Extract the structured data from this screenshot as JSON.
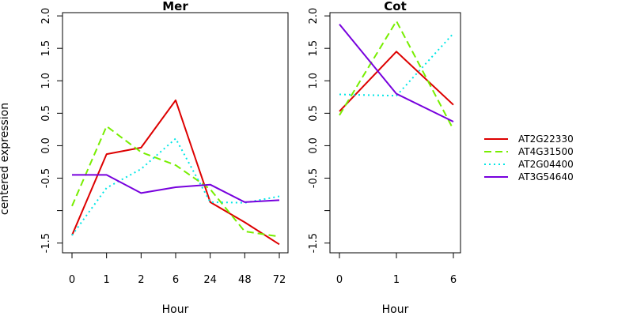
{
  "ylabel": "centered expression",
  "legend": {
    "position": "right",
    "entries": [
      {
        "name": "AT2G22330",
        "color": "#dd0000",
        "dash": "solid"
      },
      {
        "name": "AT4G31500",
        "color": "#77ee00",
        "dash": "dashed"
      },
      {
        "name": "AT2G04400",
        "color": "#00e6e6",
        "dash": "dotted"
      },
      {
        "name": "AT3G54640",
        "color": "#7700dd",
        "dash": "solid"
      }
    ]
  },
  "chart_data": [
    {
      "type": "line",
      "title": "Mer",
      "xlabel": "Hour",
      "ylabel": "centered expression",
      "categories": [
        "0",
        "1",
        "2",
        "6",
        "24",
        "48",
        "72"
      ],
      "ylim": [
        -1.65,
        2.05
      ],
      "yticks": [
        {
          "value": 2.0,
          "label": "2.0"
        },
        {
          "value": 1.5,
          "label": "1.5"
        },
        {
          "value": 1.0,
          "label": "1.0"
        },
        {
          "value": 0.5,
          "label": "0.5"
        },
        {
          "value": 0.0,
          "label": "0.0"
        },
        {
          "value": -0.5,
          "label": "-0.5"
        },
        {
          "value": -1.0,
          "label": ""
        },
        {
          "value": -1.5,
          "label": "-1.5"
        }
      ],
      "grid": false,
      "series": [
        {
          "name": "AT2G22330",
          "values": [
            -1.38,
            -0.13,
            -0.03,
            0.7,
            -0.87,
            -1.18,
            -1.52
          ]
        },
        {
          "name": "AT4G31500",
          "values": [
            -0.93,
            0.3,
            -0.1,
            -0.3,
            -0.67,
            -1.32,
            -1.4
          ]
        },
        {
          "name": "AT2G04400",
          "values": [
            -1.38,
            -0.65,
            -0.36,
            0.11,
            -0.87,
            -0.88,
            -0.78
          ]
        },
        {
          "name": "AT3G54640",
          "values": [
            -0.45,
            -0.45,
            -0.73,
            -0.64,
            -0.6,
            -0.87,
            -0.84
          ]
        }
      ]
    },
    {
      "type": "line",
      "title": "Cot",
      "xlabel": "Hour",
      "categories": [
        "0",
        "1",
        "6"
      ],
      "ylim": [
        -1.65,
        2.05
      ],
      "yticks": [
        {
          "value": 2.0,
          "label": "2.0"
        },
        {
          "value": 1.5,
          "label": "1.5"
        },
        {
          "value": 1.0,
          "label": "1.0"
        },
        {
          "value": 0.5,
          "label": "0.5"
        },
        {
          "value": 0.0,
          "label": "0.0"
        },
        {
          "value": -0.5,
          "label": "-0.5"
        },
        {
          "value": -1.0,
          "label": ""
        },
        {
          "value": -1.5,
          "label": "-1.5"
        }
      ],
      "grid": false,
      "series": [
        {
          "name": "AT2G22330",
          "values": [
            0.53,
            1.45,
            0.63
          ]
        },
        {
          "name": "AT4G31500",
          "values": [
            0.47,
            1.92,
            0.25
          ]
        },
        {
          "name": "AT2G04400",
          "values": [
            0.79,
            0.77,
            1.73
          ]
        },
        {
          "name": "AT3G54640",
          "values": [
            1.87,
            0.8,
            0.37
          ]
        }
      ]
    }
  ]
}
